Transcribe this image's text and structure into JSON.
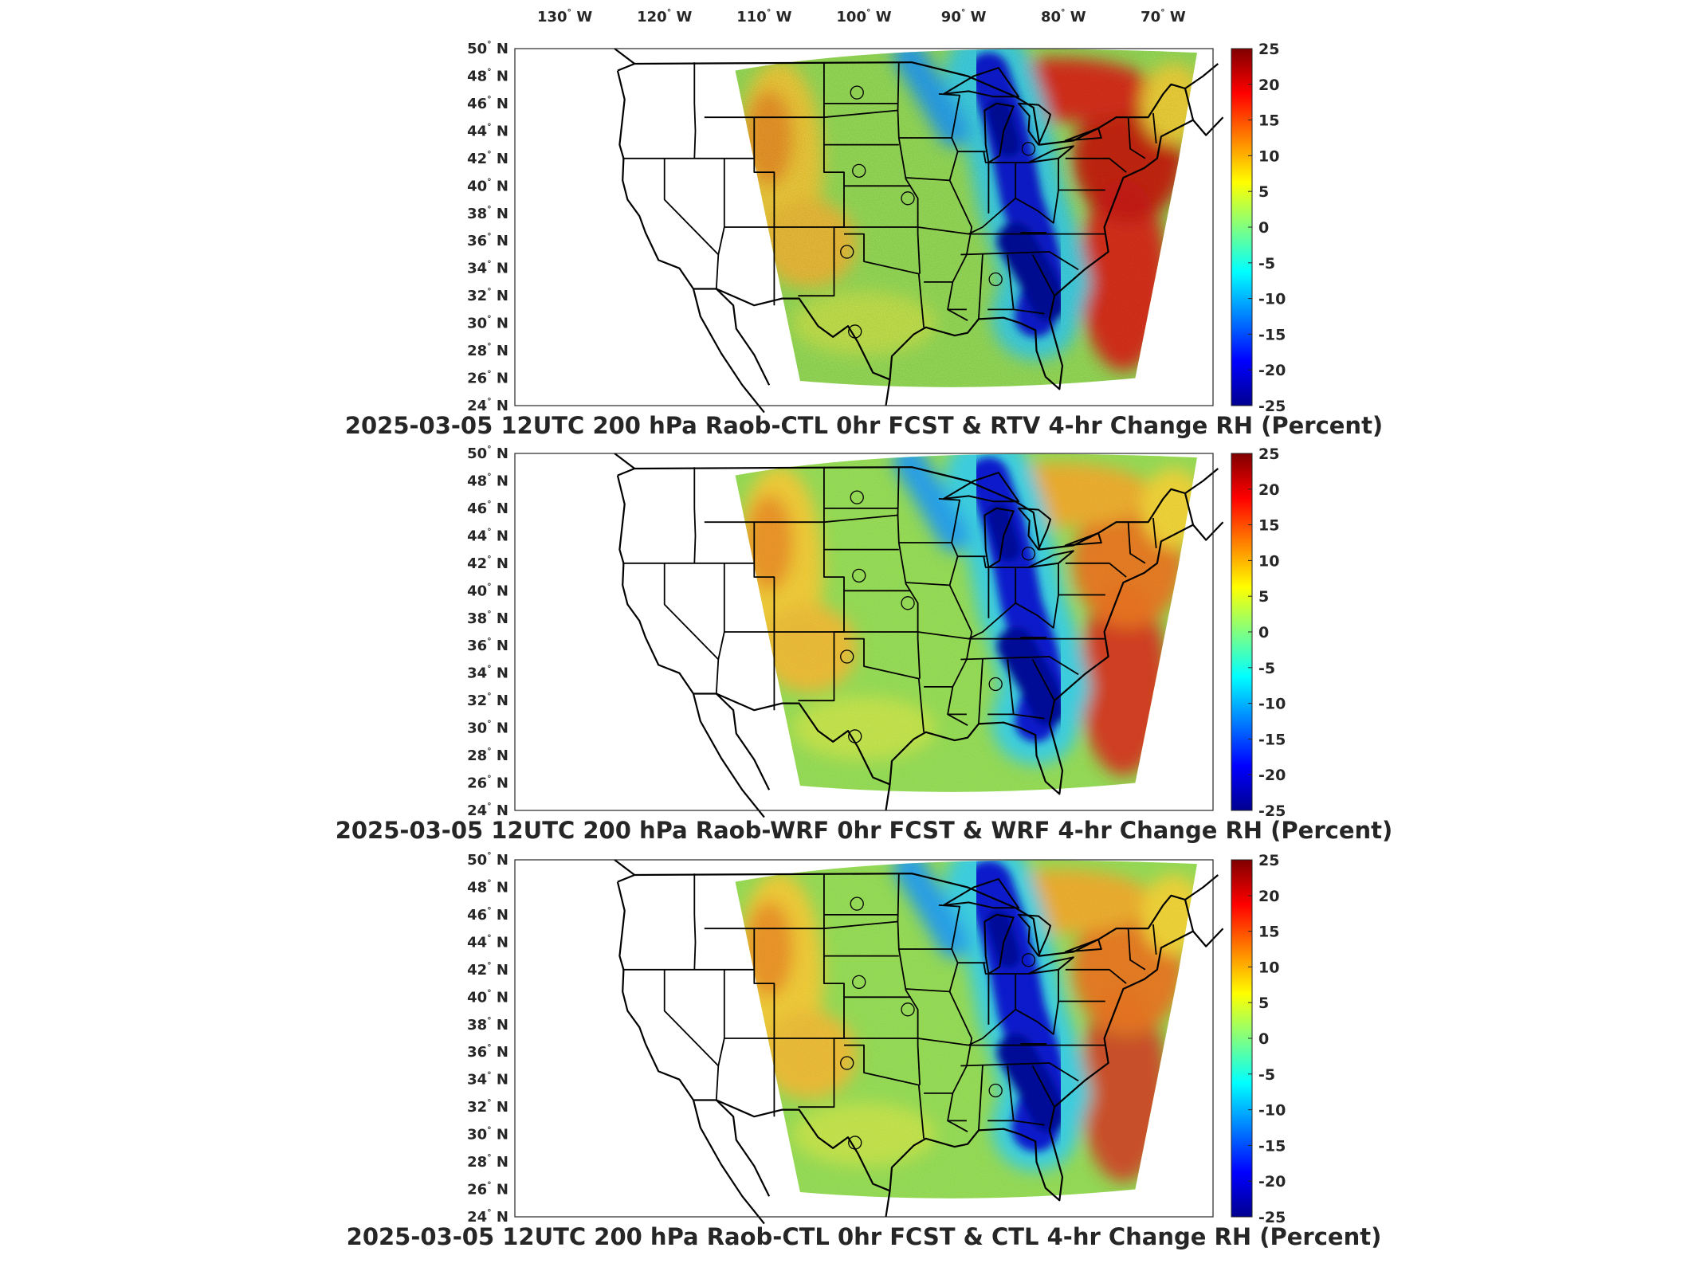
{
  "figure": {
    "top_lon_labels": [
      "130",
      "120",
      "110",
      "100",
      "90",
      "80",
      "70"
    ],
    "lon_suffix": "W",
    "lat_labels": [
      "50",
      "48",
      "46",
      "44",
      "42",
      "40",
      "38",
      "36",
      "34",
      "32",
      "30",
      "28",
      "26",
      "24"
    ],
    "lat_suffix": "N",
    "degree_symbol": "°"
  },
  "colorbar": {
    "ticks": [
      "25",
      "20",
      "15",
      "10",
      "5",
      "0",
      "-5",
      "-10",
      "-15",
      "-20",
      "-25"
    ],
    "range": [
      -25,
      25
    ],
    "colormap": "jet",
    "colors": [
      "#00008f",
      "#0000ff",
      "#0080ff",
      "#00ffff",
      "#80ff80",
      "#ffff00",
      "#ff8000",
      "#ff0000",
      "#800000"
    ]
  },
  "panels": [
    {
      "title": "2025-03-05 12UTC 200 hPa Raob-CTL 0hr FCST & RTV 4-hr Change RH (Percent)"
    },
    {
      "title": "2025-03-05 12UTC 200 hPa Raob-WRF 0hr FCST & WRF 4-hr Change RH (Percent)"
    },
    {
      "title": "2025-03-05 12UTC 200 hPa Raob-CTL 0hr FCST & CTL 4-hr Change RH (Percent)"
    }
  ],
  "map": {
    "lon_range": [
      -135,
      -65
    ],
    "lat_range": [
      24,
      50
    ],
    "projection": "equirectangular",
    "field_colors": {
      "background_field": "#9be35a",
      "dry_band": "#0a1fd6",
      "moist_east": "#e0301e",
      "moist_west": "#f29a2a",
      "coastline": "#000000"
    }
  }
}
